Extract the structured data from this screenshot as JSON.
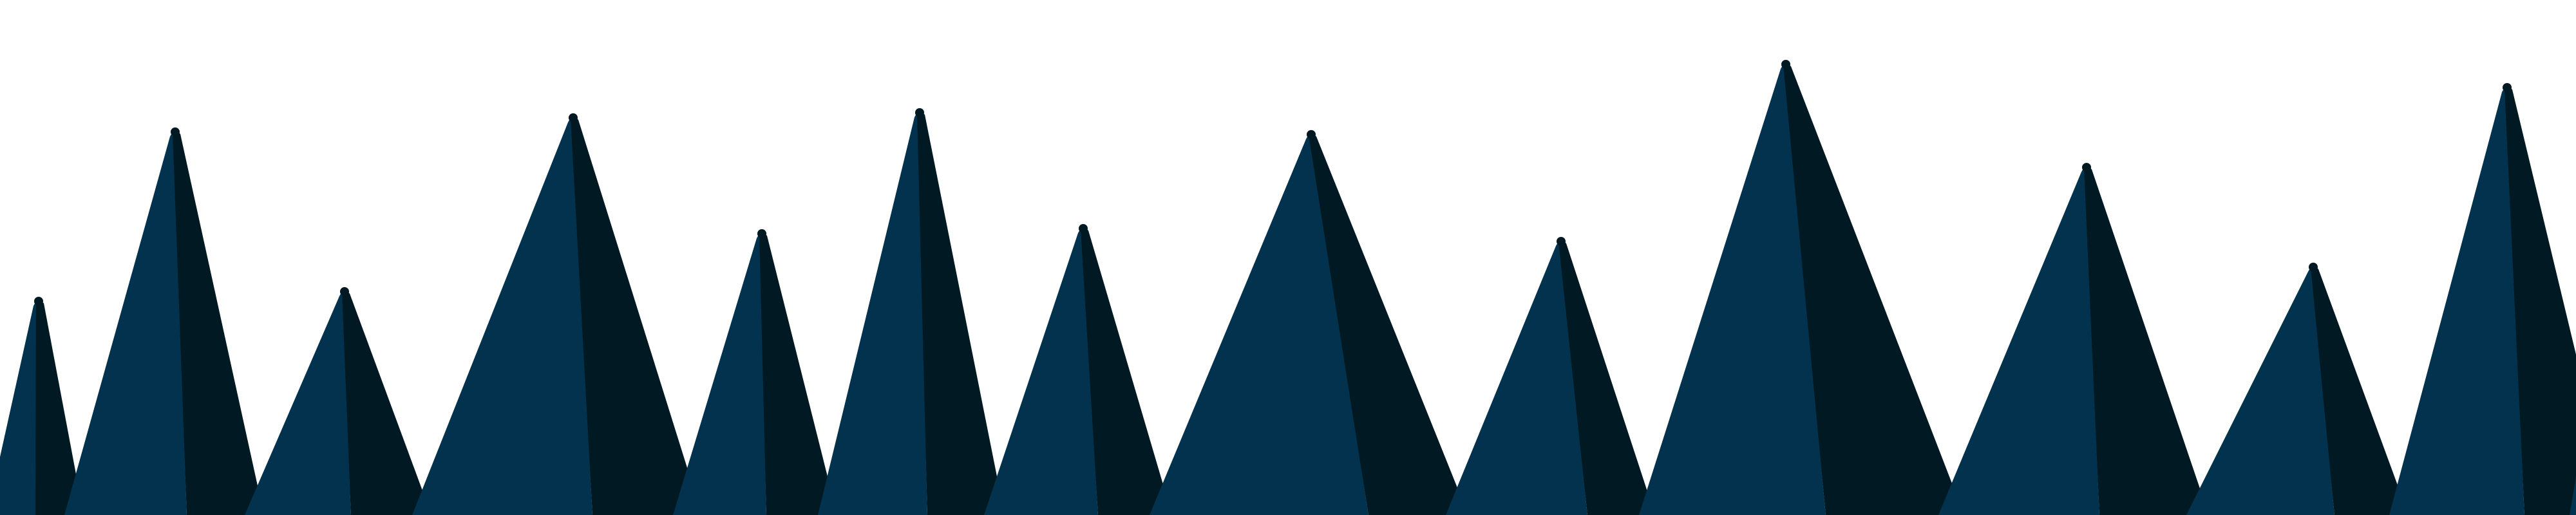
{
  "illustration": {
    "subject": "mountain-range",
    "peak_count": 14,
    "colors": {
      "background": "#ffffff",
      "lit_face": "#02324d",
      "shadow_face": "#011922"
    }
  }
}
